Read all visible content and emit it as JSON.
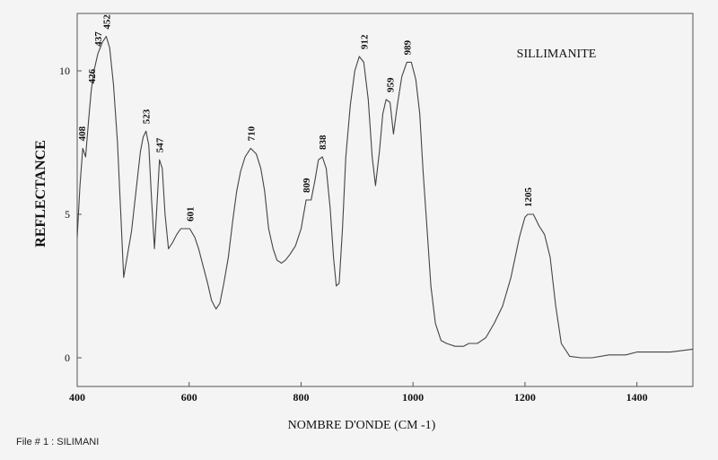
{
  "chart_data": {
    "type": "line",
    "title": "SILLIMANITE",
    "xlabel": "NOMBRE D'ONDE (CM -1)",
    "ylabel": "REFLECTANCE",
    "xlim": [
      400,
      1500
    ],
    "ylim": [
      -1,
      12
    ],
    "xticks": [
      400,
      600,
      800,
      1000,
      1200,
      1400
    ],
    "yticks": [
      0,
      5,
      10
    ],
    "grid": false,
    "series": [
      {
        "color": "#444444",
        "x": [
          400,
          405,
          410,
          415,
          420,
          425,
          430,
          437,
          445,
          452,
          458,
          465,
          472,
          478,
          483,
          490,
          497,
          505,
          513,
          518,
          523,
          528,
          533,
          538,
          543,
          547,
          552,
          557,
          563,
          570,
          578,
          585,
          593,
          601,
          610,
          617,
          625,
          633,
          640,
          648,
          655,
          662,
          670,
          678,
          685,
          692,
          700,
          710,
          720,
          728,
          735,
          742,
          750,
          757,
          765,
          772,
          780,
          790,
          800,
          809,
          818,
          825,
          831,
          838,
          845,
          852,
          858,
          863,
          868,
          874,
          880,
          888,
          896,
          904,
          912,
          920,
          927,
          933,
          940,
          946,
          952,
          959,
          965,
          972,
          980,
          989,
          997,
          1005,
          1012,
          1018,
          1025,
          1032,
          1040,
          1050,
          1060,
          1075,
          1090,
          1100,
          1115,
          1130,
          1145,
          1160,
          1175,
          1190,
          1200,
          1205,
          1215,
          1225,
          1235,
          1245,
          1255,
          1265,
          1280,
          1300,
          1320,
          1350,
          1380,
          1400,
          1430,
          1460,
          1500
        ],
        "y": [
          4.2,
          6.0,
          7.3,
          7.0,
          8.2,
          9.3,
          10.0,
          10.6,
          11.0,
          11.2,
          10.8,
          9.5,
          7.5,
          5.0,
          2.8,
          3.6,
          4.4,
          5.8,
          7.2,
          7.7,
          7.9,
          7.4,
          5.5,
          3.8,
          5.5,
          6.9,
          6.6,
          5.0,
          3.8,
          4.0,
          4.3,
          4.5,
          4.5,
          4.5,
          4.2,
          3.8,
          3.2,
          2.6,
          2.0,
          1.7,
          1.9,
          2.6,
          3.5,
          4.8,
          5.8,
          6.5,
          7.0,
          7.3,
          7.1,
          6.6,
          5.8,
          4.5,
          3.8,
          3.4,
          3.3,
          3.4,
          3.6,
          3.9,
          4.5,
          5.5,
          5.5,
          6.2,
          6.9,
          7.0,
          6.6,
          5.2,
          3.5,
          2.5,
          2.6,
          4.5,
          7.0,
          8.8,
          10.0,
          10.5,
          10.3,
          9.0,
          7.0,
          6.0,
          7.2,
          8.5,
          9.0,
          8.9,
          7.8,
          8.8,
          9.8,
          10.3,
          10.3,
          9.7,
          8.5,
          6.5,
          4.5,
          2.5,
          1.2,
          0.6,
          0.5,
          0.4,
          0.4,
          0.5,
          0.5,
          0.7,
          1.2,
          1.8,
          2.8,
          4.2,
          4.9,
          5.0,
          5.0,
          4.6,
          4.3,
          3.5,
          1.8,
          0.5,
          0.05,
          0.0,
          0.0,
          0.1,
          0.1,
          0.2,
          0.2,
          0.2,
          0.3
        ]
      }
    ],
    "annotations": [
      {
        "text": "408",
        "x": 408,
        "y": 7.3
      },
      {
        "text": "426",
        "x": 426,
        "y": 9.3
      },
      {
        "text": "437",
        "x": 437,
        "y": 10.6
      },
      {
        "text": "452",
        "x": 452,
        "y": 11.2
      },
      {
        "text": "523",
        "x": 523,
        "y": 7.9
      },
      {
        "text": "547",
        "x": 547,
        "y": 6.9
      },
      {
        "text": "601",
        "x": 601,
        "y": 4.5
      },
      {
        "text": "710",
        "x": 710,
        "y": 7.3
      },
      {
        "text": "809",
        "x": 809,
        "y": 5.5
      },
      {
        "text": "838",
        "x": 838,
        "y": 7.0
      },
      {
        "text": "912",
        "x": 912,
        "y": 10.5
      },
      {
        "text": "959",
        "x": 959,
        "y": 9.0
      },
      {
        "text": "989",
        "x": 989,
        "y": 10.3
      },
      {
        "text": "1205",
        "x": 1205,
        "y": 5.0
      }
    ]
  },
  "footer_text": "File # 1 : SILIMANI"
}
